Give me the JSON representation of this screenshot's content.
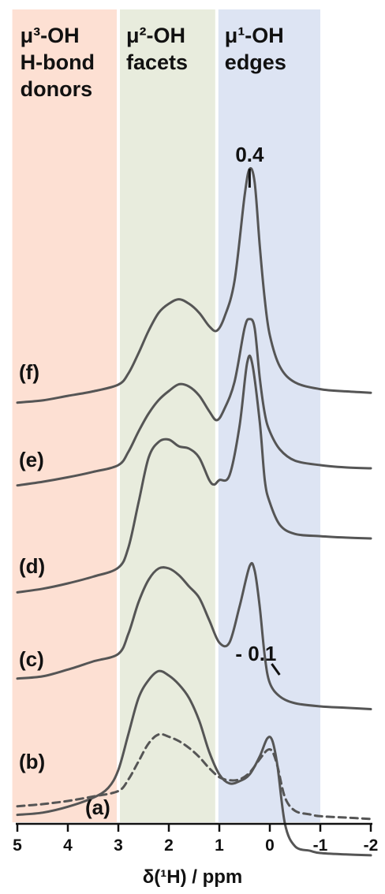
{
  "chart_data": {
    "type": "line",
    "xlabel": "δ(¹H) / ppm",
    "xlim": [
      5,
      -2
    ],
    "x_ticks": [
      "5",
      "4",
      "3",
      "2",
      "1",
      "0",
      "-1",
      "-2"
    ],
    "x_tick_values": [
      5,
      4,
      3,
      2,
      1,
      0,
      -1,
      -2
    ],
    "regions": [
      {
        "lines": [
          "μ³-OH",
          "H-bond",
          "donors"
        ],
        "from": 5.1,
        "to": 3.0,
        "color": "#fde0d3"
      },
      {
        "lines": [
          "μ²-OH",
          "facets"
        ],
        "from": 3.0,
        "to": 1.05,
        "color": "#e8ecdd"
      },
      {
        "lines": [
          "μ¹-OH",
          "edges"
        ],
        "from": 1.05,
        "to": -1.0,
        "color": "#dde4f3"
      }
    ],
    "peak_annotations": [
      {
        "text": "0.4",
        "x": 0.4
      },
      {
        "text": "- 0.1",
        "x": -0.1
      }
    ],
    "series": [
      {
        "name": "(a)",
        "style": "dashed",
        "color": "#555555",
        "offset": 0,
        "points": [
          [
            5,
            -0.4
          ],
          [
            4.5,
            -0.35
          ],
          [
            4,
            -0.28
          ],
          [
            3.5,
            -0.18
          ],
          [
            3,
            -0.06
          ],
          [
            2.8,
            0.2
          ],
          [
            2.6,
            0.6
          ],
          [
            2.4,
            1.0
          ],
          [
            2.2,
            1.2
          ],
          [
            2,
            1.15
          ],
          [
            1.8,
            1.05
          ],
          [
            1.6,
            0.9
          ],
          [
            1.4,
            0.7
          ],
          [
            1.2,
            0.45
          ],
          [
            1,
            0.25
          ],
          [
            0.8,
            0.18
          ],
          [
            0.6,
            0.2
          ],
          [
            0.4,
            0.35
          ],
          [
            0.2,
            0.65
          ],
          [
            0.05,
            0.85
          ],
          [
            -0.05,
            0.82
          ],
          [
            -0.15,
            0.5
          ],
          [
            -0.3,
            -0.2
          ],
          [
            -0.5,
            -0.5
          ],
          [
            -0.8,
            -0.58
          ],
          [
            -1,
            -0.62
          ],
          [
            -1.5,
            -0.65
          ],
          [
            -2,
            -0.68
          ]
        ]
      },
      {
        "name": "(b)",
        "style": "solid",
        "color": "#555555",
        "offset": 1.0,
        "points": [
          [
            5,
            -0.8
          ],
          [
            4.5,
            -0.75
          ],
          [
            4,
            -0.62
          ],
          [
            3.5,
            -0.42
          ],
          [
            3.2,
            -0.2
          ],
          [
            3,
            0.2
          ],
          [
            2.8,
            1.0
          ],
          [
            2.6,
            1.8
          ],
          [
            2.4,
            2.2
          ],
          [
            2.2,
            2.4
          ],
          [
            2,
            2.3
          ],
          [
            1.8,
            2.1
          ],
          [
            1.6,
            1.8
          ],
          [
            1.4,
            1.3
          ],
          [
            1.2,
            0.6
          ],
          [
            1,
            0.1
          ],
          [
            0.8,
            -0.1
          ],
          [
            0.6,
            -0.05
          ],
          [
            0.4,
            0.1
          ],
          [
            0.2,
            0.5
          ],
          [
            0.05,
            0.9
          ],
          [
            -0.05,
            0.85
          ],
          [
            -0.15,
            0.3
          ],
          [
            -0.3,
            -1.0
          ],
          [
            -0.5,
            -1.5
          ],
          [
            -0.8,
            -1.6
          ],
          [
            -1,
            -1.65
          ],
          [
            -1.5,
            -1.68
          ],
          [
            -2,
            -1.7
          ]
        ]
      },
      {
        "name": "(c)",
        "style": "solid",
        "color": "#555555",
        "offset": 2.0,
        "points": [
          [
            5,
            -0.1
          ],
          [
            4.5,
            -0.05
          ],
          [
            4,
            0.1
          ],
          [
            3.5,
            0.28
          ],
          [
            3,
            0.45
          ],
          [
            2.8,
            0.9
          ],
          [
            2.6,
            1.6
          ],
          [
            2.4,
            2.1
          ],
          [
            2.2,
            2.35
          ],
          [
            2,
            2.35
          ],
          [
            1.8,
            2.2
          ],
          [
            1.6,
            1.95
          ],
          [
            1.4,
            1.7
          ],
          [
            1.2,
            1.2
          ],
          [
            1,
            0.7
          ],
          [
            0.8,
            0.7
          ],
          [
            0.6,
            1.5
          ],
          [
            0.4,
            2.4
          ],
          [
            0.3,
            2.3
          ],
          [
            0.2,
            1.5
          ],
          [
            0.1,
            0.4
          ],
          [
            0,
            -0.2
          ],
          [
            -0.2,
            -0.5
          ],
          [
            -0.5,
            -0.65
          ],
          [
            -1,
            -0.72
          ],
          [
            -1.5,
            -0.75
          ],
          [
            -2,
            -0.78
          ]
        ]
      },
      {
        "name": "(d)",
        "style": "solid",
        "color": "#555555",
        "offset": 3.0,
        "points": [
          [
            5,
            -0.2
          ],
          [
            4.5,
            -0.12
          ],
          [
            4,
            0.0
          ],
          [
            3.5,
            0.15
          ],
          [
            3,
            0.35
          ],
          [
            2.8,
            0.8
          ],
          [
            2.6,
            1.8
          ],
          [
            2.4,
            2.8
          ],
          [
            2.2,
            3.15
          ],
          [
            2,
            3.2
          ],
          [
            1.8,
            3.05
          ],
          [
            1.6,
            3.0
          ],
          [
            1.4,
            2.8
          ],
          [
            1.2,
            2.3
          ],
          [
            1.1,
            2.2
          ],
          [
            1,
            2.3
          ],
          [
            0.8,
            2.4
          ],
          [
            0.6,
            3.5
          ],
          [
            0.45,
            4.9
          ],
          [
            0.35,
            4.9
          ],
          [
            0.2,
            3.6
          ],
          [
            0.1,
            2.3
          ],
          [
            0,
            1.8
          ],
          [
            -0.2,
            1.3
          ],
          [
            -0.5,
            1.1
          ],
          [
            -1,
            1.05
          ],
          [
            -1.5,
            1.02
          ],
          [
            -2,
            1.0
          ]
        ]
      },
      {
        "name": "(e)",
        "style": "solid",
        "color": "#555555",
        "offset": 4.0,
        "points": [
          [
            5,
            -0.1
          ],
          [
            4.5,
            -0.02
          ],
          [
            4,
            0.08
          ],
          [
            3.5,
            0.2
          ],
          [
            3,
            0.35
          ],
          [
            2.8,
            0.65
          ],
          [
            2.6,
            1.1
          ],
          [
            2.4,
            1.5
          ],
          [
            2.2,
            1.8
          ],
          [
            2,
            2.0
          ],
          [
            1.8,
            2.15
          ],
          [
            1.6,
            2.1
          ],
          [
            1.4,
            1.9
          ],
          [
            1.2,
            1.55
          ],
          [
            1.05,
            1.35
          ],
          [
            0.9,
            1.6
          ],
          [
            0.7,
            2.2
          ],
          [
            0.5,
            3.4
          ],
          [
            0.4,
            3.6
          ],
          [
            0.3,
            3.4
          ],
          [
            0.2,
            2.3
          ],
          [
            0.1,
            1.5
          ],
          [
            0,
            1.1
          ],
          [
            -0.2,
            0.7
          ],
          [
            -0.5,
            0.45
          ],
          [
            -1,
            0.35
          ],
          [
            -1.5,
            0.3
          ],
          [
            -2,
            0.28
          ]
        ]
      },
      {
        "name": "(f)",
        "style": "solid",
        "color": "#555555",
        "offset": 5.0,
        "points": [
          [
            5,
            -0.1
          ],
          [
            4.5,
            -0.05
          ],
          [
            4,
            0.05
          ],
          [
            3.5,
            0.15
          ],
          [
            3,
            0.3
          ],
          [
            2.8,
            0.55
          ],
          [
            2.6,
            1.0
          ],
          [
            2.4,
            1.5
          ],
          [
            2.2,
            1.9
          ],
          [
            2,
            2.1
          ],
          [
            1.8,
            2.2
          ],
          [
            1.6,
            2.1
          ],
          [
            1.4,
            1.9
          ],
          [
            1.2,
            1.6
          ],
          [
            1.05,
            1.5
          ],
          [
            0.9,
            1.8
          ],
          [
            0.7,
            2.6
          ],
          [
            0.5,
            4.5
          ],
          [
            0.4,
            5.1
          ],
          [
            0.3,
            4.8
          ],
          [
            0.2,
            3.4
          ],
          [
            0.1,
            2.2
          ],
          [
            0,
            1.4
          ],
          [
            -0.2,
            0.7
          ],
          [
            -0.5,
            0.35
          ],
          [
            -1,
            0.2
          ],
          [
            -1.5,
            0.15
          ],
          [
            -2,
            0.12
          ]
        ]
      }
    ]
  }
}
